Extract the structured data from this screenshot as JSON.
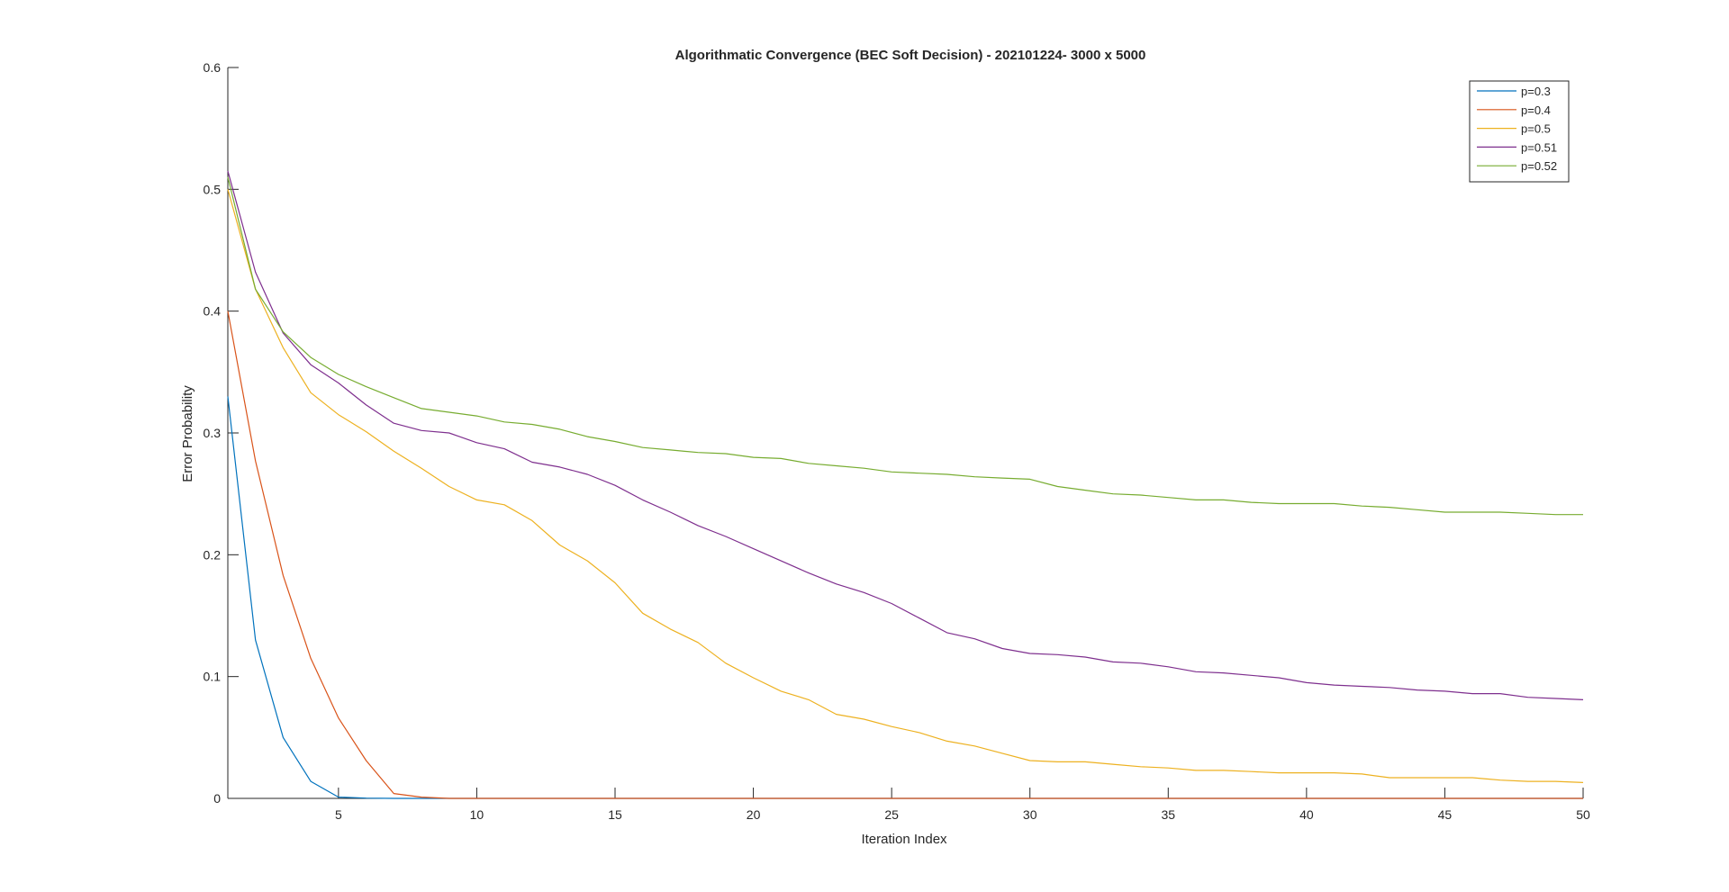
{
  "chart_data": {
    "type": "line",
    "title": "Algorithmatic Convergence (BEC Soft Decision) - 202101224- 3000 x 5000",
    "xlabel": "Iteration Index",
    "ylabel": "Error Probability",
    "xlim": [
      1,
      50
    ],
    "ylim": [
      0,
      0.6
    ],
    "xticks": [
      5,
      10,
      15,
      20,
      25,
      30,
      35,
      40,
      45,
      50
    ],
    "xtick_labels": [
      "5",
      "10",
      "15",
      "20",
      "25",
      "30",
      "35",
      "40",
      "45",
      "50"
    ],
    "yticks": [
      0,
      0.1,
      0.2,
      0.3,
      0.4,
      0.5,
      0.6
    ],
    "ytick_labels": [
      "0",
      "0.1",
      "0.2",
      "0.3",
      "0.4",
      "0.5",
      "0.6"
    ],
    "grid": false,
    "legend_position": "top-right",
    "x": [
      1,
      2,
      3,
      4,
      5,
      6,
      7,
      8,
      9,
      10,
      11,
      12,
      13,
      14,
      15,
      16,
      17,
      18,
      19,
      20,
      21,
      22,
      23,
      24,
      25,
      26,
      27,
      28,
      29,
      30,
      31,
      32,
      33,
      34,
      35,
      36,
      37,
      38,
      39,
      40,
      41,
      42,
      43,
      44,
      45,
      46,
      47,
      48,
      49,
      50
    ],
    "series": [
      {
        "name": "p=0.3",
        "color": "#0072BD",
        "values": [
          0.33,
          0.13,
          0.05,
          0.014,
          0.001,
          0.0002,
          0,
          0,
          0,
          0,
          0,
          0,
          0,
          0,
          0,
          0,
          0,
          0,
          0,
          0,
          0,
          0,
          0,
          0,
          0,
          0,
          0,
          0,
          0,
          0,
          0,
          0,
          0,
          0,
          0,
          0,
          0,
          0,
          0,
          0,
          0,
          0,
          0,
          0,
          0,
          0,
          0,
          0,
          0,
          0
        ]
      },
      {
        "name": "p=0.4",
        "color": "#D95319",
        "values": [
          0.4,
          0.277,
          0.183,
          0.115,
          0.066,
          0.031,
          0.004,
          0.001,
          0,
          0,
          0,
          0,
          0,
          0,
          0,
          0,
          0,
          0,
          0,
          0,
          0,
          0,
          0,
          0,
          0,
          0,
          0,
          0,
          0,
          0,
          0,
          0,
          0,
          0,
          0,
          0,
          0,
          0,
          0,
          0,
          0,
          0,
          0,
          0,
          0,
          0,
          0,
          0,
          0,
          0
        ]
      },
      {
        "name": "p=0.5",
        "color": "#EDB120",
        "values": [
          0.5,
          0.418,
          0.37,
          0.333,
          0.315,
          0.301,
          0.285,
          0.271,
          0.256,
          0.245,
          0.241,
          0.228,
          0.208,
          0.195,
          0.177,
          0.152,
          0.139,
          0.128,
          0.111,
          0.099,
          0.088,
          0.081,
          0.069,
          0.065,
          0.059,
          0.054,
          0.047,
          0.043,
          0.037,
          0.031,
          0.03,
          0.03,
          0.028,
          0.026,
          0.025,
          0.023,
          0.023,
          0.022,
          0.021,
          0.021,
          0.021,
          0.02,
          0.017,
          0.017,
          0.017,
          0.017,
          0.015,
          0.014,
          0.014,
          0.013
        ]
      },
      {
        "name": "p=0.51",
        "color": "#7E2F8E",
        "values": [
          0.515,
          0.432,
          0.382,
          0.356,
          0.341,
          0.323,
          0.308,
          0.302,
          0.3,
          0.292,
          0.287,
          0.276,
          0.272,
          0.266,
          0.257,
          0.245,
          0.235,
          0.224,
          0.215,
          0.205,
          0.195,
          0.185,
          0.176,
          0.169,
          0.16,
          0.148,
          0.136,
          0.131,
          0.123,
          0.119,
          0.118,
          0.116,
          0.112,
          0.111,
          0.108,
          0.104,
          0.103,
          0.101,
          0.099,
          0.095,
          0.093,
          0.092,
          0.091,
          0.089,
          0.088,
          0.086,
          0.086,
          0.083,
          0.082,
          0.081
        ]
      },
      {
        "name": "p=0.52",
        "color": "#77AC30",
        "values": [
          0.51,
          0.418,
          0.383,
          0.362,
          0.348,
          0.338,
          0.329,
          0.32,
          0.317,
          0.314,
          0.309,
          0.307,
          0.303,
          0.297,
          0.293,
          0.288,
          0.286,
          0.284,
          0.283,
          0.28,
          0.279,
          0.275,
          0.273,
          0.271,
          0.268,
          0.267,
          0.266,
          0.264,
          0.263,
          0.262,
          0.256,
          0.253,
          0.25,
          0.249,
          0.247,
          0.245,
          0.245,
          0.243,
          0.242,
          0.242,
          0.242,
          0.24,
          0.239,
          0.237,
          0.235,
          0.235,
          0.235,
          0.234,
          0.233,
          0.233
        ]
      }
    ]
  }
}
